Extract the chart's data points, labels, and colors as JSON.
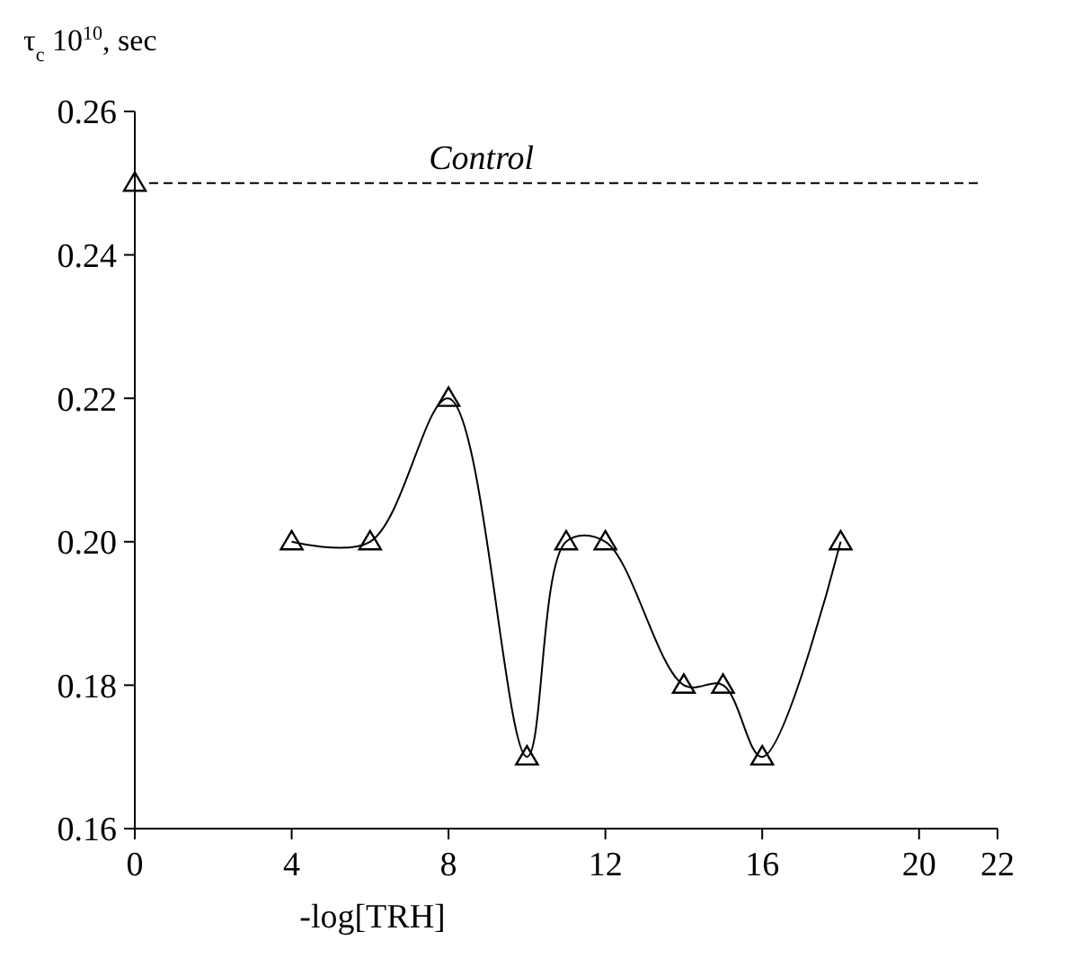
{
  "chart_data": {
    "type": "line",
    "ylabel": "τ$_{c}$ 10$^{10}$, sec",
    "xlabel": "-log[TRH]",
    "xlim": [
      0,
      22
    ],
    "xticks": [
      0,
      4,
      8,
      12,
      16,
      20,
      22
    ],
    "ylim": [
      0.16,
      0.26
    ],
    "yticks": [
      0.16,
      0.18,
      {
        "value": 0.2,
        "label": "0.20"
      },
      0.22,
      0.24,
      0.26
    ],
    "marker": "triangle",
    "grid": false,
    "series": [
      {
        "color": "#000000",
        "x": [
          4,
          6,
          8,
          10,
          11,
          12,
          14,
          15,
          16,
          18
        ],
        "values": [
          0.2,
          0.2,
          0.22,
          0.17,
          0.2,
          0.2,
          0.18,
          0.18,
          0.17,
          0.2
        ]
      },
      {
        "type": "scatter",
        "color": "#000000",
        "x": [
          0
        ],
        "values": [
          0.25
        ]
      }
    ],
    "ref_lines": [
      {
        "axis": "y",
        "value": 0.25,
        "label": "Control",
        "line_style": "dashed",
        "color": "#000000"
      }
    ]
  }
}
